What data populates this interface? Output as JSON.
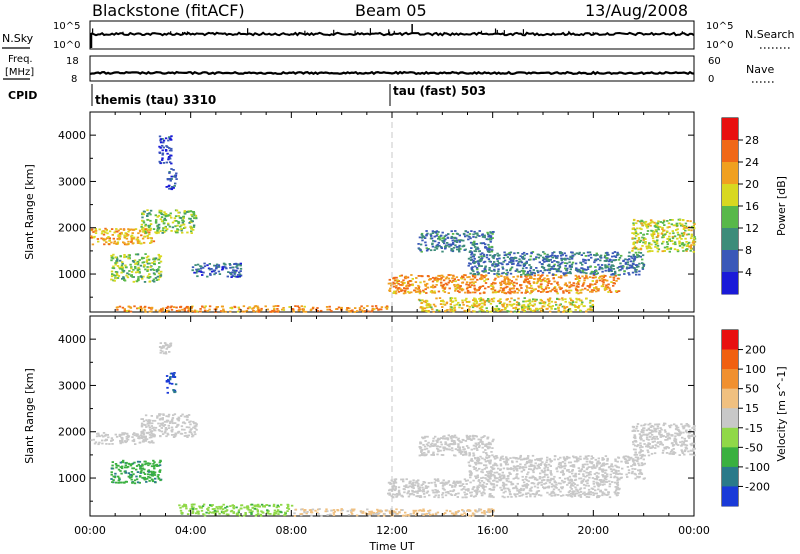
{
  "header": {
    "station": "Blackstone (fitACF)",
    "beam": "Beam 05",
    "date": "13/Aug/2008"
  },
  "noise_panel": {
    "left_label": "N.Sky",
    "right_label": "N.Search",
    "left_ticks": [
      "10^5",
      "10^0"
    ],
    "right_ticks": [
      "10^5",
      "10^0"
    ]
  },
  "freq_panel": {
    "left_label": "Freq.",
    "unit": "[MHz]",
    "right_label": "Nave",
    "left_ticks": [
      "18",
      "8"
    ],
    "right_ticks": [
      "60",
      "0"
    ]
  },
  "cpid": {
    "label": "CPID",
    "programs": [
      {
        "name": "themis (tau) 3310",
        "start_hour": 0
      },
      {
        "name": "tau (fast) 503",
        "start_hour": 12
      }
    ]
  },
  "chart_data": [
    {
      "type": "heatmap",
      "name": "power",
      "ylabel": "Slant Range [km]",
      "xlim": [
        0,
        24
      ],
      "ylim": [
        180,
        4500
      ],
      "yticks": [
        1000,
        2000,
        3000,
        4000
      ],
      "xticks": [
        "00:00",
        "04:00",
        "08:00",
        "12:00",
        "16:00",
        "20:00",
        "00:00"
      ],
      "colorbar": {
        "label": "Power [dB]",
        "ticks": [
          "4",
          "8",
          "12",
          "16",
          "20",
          "24",
          "28"
        ],
        "range": [
          0,
          30
        ],
        "colors": [
          "#1a1ad8",
          "#3a58b8",
          "#3d8c7a",
          "#58b84a",
          "#d8d820",
          "#f0a020",
          "#f06818",
          "#e81010"
        ]
      },
      "regions": [
        {
          "t": [
            0.0,
            2.5
          ],
          "r": [
            1650,
            2000
          ],
          "value": 20
        },
        {
          "t": [
            2.0,
            4.2
          ],
          "r": [
            1900,
            2400
          ],
          "value": 14
        },
        {
          "t": [
            0.8,
            2.8
          ],
          "r": [
            850,
            1450
          ],
          "value": 14
        },
        {
          "t": [
            2.7,
            3.2
          ],
          "r": [
            3400,
            4000
          ],
          "value": 4
        },
        {
          "t": [
            3.0,
            3.4
          ],
          "r": [
            2850,
            3300
          ],
          "value": 4
        },
        {
          "t": [
            4.0,
            6.0
          ],
          "r": [
            950,
            1250
          ],
          "value": 6
        },
        {
          "t": [
            1.0,
            11.8
          ],
          "r": [
            200,
            330
          ],
          "value": 22
        },
        {
          "t": [
            11.8,
            21.0
          ],
          "r": [
            600,
            1000
          ],
          "value": 22
        },
        {
          "t": [
            13.0,
            16.0
          ],
          "r": [
            1500,
            1950
          ],
          "value": 8
        },
        {
          "t": [
            15.0,
            22.0
          ],
          "r": [
            1000,
            1500
          ],
          "value": 8
        },
        {
          "t": [
            21.5,
            24.0
          ],
          "r": [
            1500,
            2200
          ],
          "value": 16
        },
        {
          "t": [
            13.0,
            20.0
          ],
          "r": [
            200,
            500
          ],
          "value": 18
        }
      ]
    },
    {
      "type": "heatmap",
      "name": "velocity",
      "ylabel": "Slant Range [km]",
      "xlabel": "Time UT",
      "xlim": [
        0,
        24
      ],
      "ylim": [
        180,
        4500
      ],
      "yticks": [
        1000,
        2000,
        3000,
        4000
      ],
      "xticks": [
        "00:00",
        "04:00",
        "08:00",
        "12:00",
        "16:00",
        "20:00",
        "00:00"
      ],
      "colorbar": {
        "label": "Velocity [m s^-1]",
        "ticks": [
          "200",
          "100",
          "50",
          "15",
          "-15",
          "-50",
          "-100",
          "-200"
        ],
        "range": [
          -250,
          250
        ],
        "colors": [
          "#1a3ad8",
          "#2a7a8a",
          "#3ab040",
          "#90d848",
          "#c8c8c8",
          "#f0c080",
          "#f09030",
          "#f06010",
          "#e81010"
        ]
      },
      "regions": [
        {
          "t": [
            0.0,
            2.5
          ],
          "r": [
            1750,
            2000
          ],
          "value": 0
        },
        {
          "t": [
            2.0,
            4.2
          ],
          "r": [
            1900,
            2400
          ],
          "value": 0
        },
        {
          "t": [
            0.8,
            2.8
          ],
          "r": [
            900,
            1400
          ],
          "value": -120
        },
        {
          "t": [
            2.7,
            3.2
          ],
          "r": [
            3700,
            3950
          ],
          "value": 0
        },
        {
          "t": [
            3.0,
            3.4
          ],
          "r": [
            2850,
            3300
          ],
          "value": -200
        },
        {
          "t": [
            3.5,
            8.0
          ],
          "r": [
            200,
            450
          ],
          "value": -60
        },
        {
          "t": [
            8.0,
            16.0
          ],
          "r": [
            200,
            350
          ],
          "value": 40
        },
        {
          "t": [
            11.8,
            21.0
          ],
          "r": [
            600,
            1000
          ],
          "value": 0
        },
        {
          "t": [
            13.0,
            16.0
          ],
          "r": [
            1500,
            1950
          ],
          "value": 0
        },
        {
          "t": [
            15.0,
            22.0
          ],
          "r": [
            1000,
            1500
          ],
          "value": 0
        },
        {
          "t": [
            21.5,
            24.0
          ],
          "r": [
            1500,
            2200
          ],
          "value": 0
        }
      ]
    }
  ]
}
